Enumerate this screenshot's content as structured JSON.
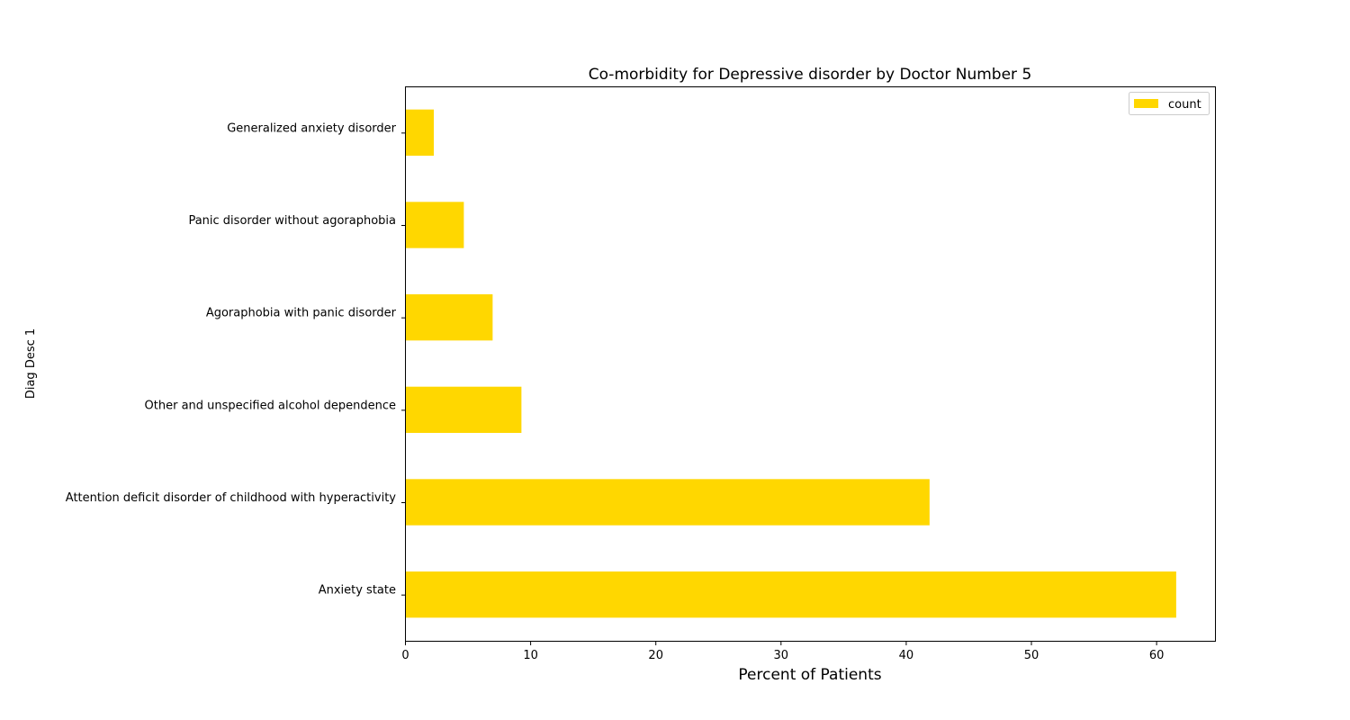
{
  "chart_data": {
    "type": "bar",
    "orientation": "horizontal",
    "title": "Co-morbidity for Depressive disorder by Doctor Number 5",
    "xlabel": "Percent of Patients",
    "ylabel": "Diag Desc 1",
    "xlim": [
      0,
      64.7
    ],
    "xticks": [
      0,
      10,
      20,
      30,
      40,
      50,
      60
    ],
    "grid": false,
    "legend_position": "top-right",
    "bar_color": "#FFD700",
    "categories": [
      "Anxiety state",
      "Attention deficit disorder of childhood with hyperactivity",
      "Other and unspecified alcohol dependence",
      "Agoraphobia with panic disorder",
      "Panic disorder without agoraphobia",
      "Generalized anxiety disorder"
    ],
    "series": [
      {
        "name": "count",
        "values": [
          61.6,
          41.9,
          9.3,
          7.0,
          4.7,
          2.3
        ]
      }
    ]
  }
}
